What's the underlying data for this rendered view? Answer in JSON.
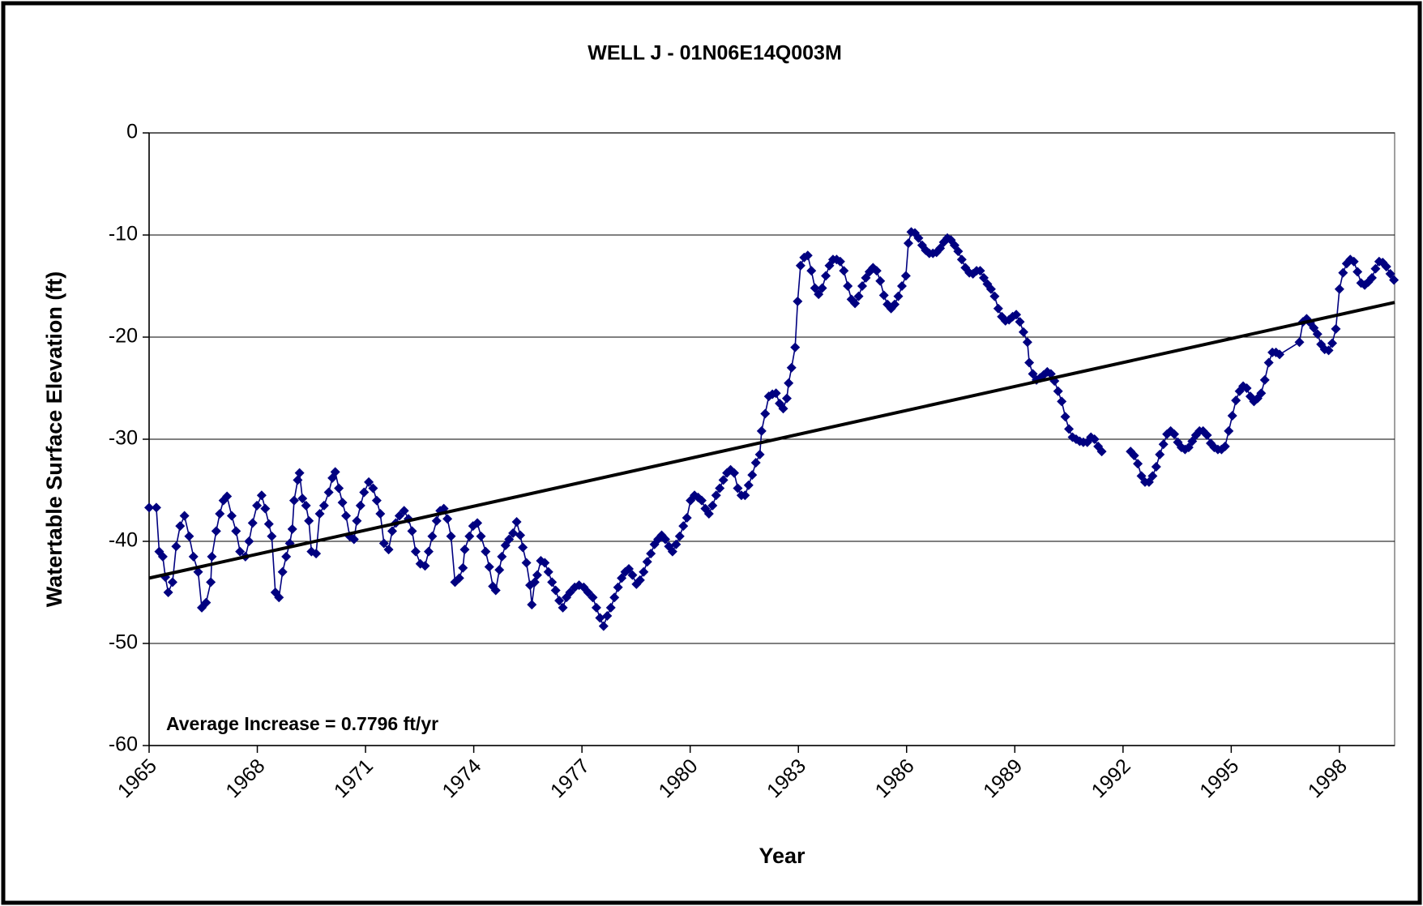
{
  "chart_data": {
    "type": "line",
    "title": "WELL J - 01N06E14Q003M",
    "x_label": "Year",
    "y_label": "Watertable Surface Elevation (ft)",
    "annotation": "Average Increase = 0.7796 ft/yr",
    "xlim": [
      1965,
      1999.53
    ],
    "xticks": [
      1965,
      1968,
      1971,
      1974,
      1977,
      1980,
      1983,
      1986,
      1989,
      1992,
      1995,
      1998
    ],
    "ylim": [
      -60,
      0
    ],
    "yticks": [
      -60,
      -50,
      -40,
      -30,
      -20,
      -10,
      0
    ],
    "grid": true,
    "x": [
      1965.0,
      1965.2,
      1965.28,
      1965.38,
      1965.45,
      1965.53,
      1965.65,
      1965.75,
      1965.86,
      1965.98,
      1966.11,
      1966.23,
      1966.36,
      1966.46,
      1966.58,
      1966.71,
      1966.74,
      1966.86,
      1966.96,
      1967.06,
      1967.16,
      1967.29,
      1967.41,
      1967.52,
      1967.67,
      1967.77,
      1967.87,
      1967.99,
      1968.12,
      1968.22,
      1968.32,
      1968.4,
      1968.5,
      1968.6,
      1968.7,
      1968.8,
      1968.9,
      1968.97,
      1969.02,
      1969.12,
      1969.17,
      1969.25,
      1969.35,
      1969.43,
      1969.5,
      1969.63,
      1969.73,
      1969.85,
      1969.98,
      1970.08,
      1970.16,
      1970.26,
      1970.36,
      1970.46,
      1970.56,
      1970.68,
      1970.76,
      1970.86,
      1970.96,
      1971.09,
      1971.21,
      1971.31,
      1971.41,
      1971.51,
      1971.64,
      1971.74,
      1971.84,
      1971.94,
      1972.07,
      1972.19,
      1972.29,
      1972.39,
      1972.52,
      1972.65,
      1972.75,
      1972.85,
      1972.97,
      1973.07,
      1973.17,
      1973.27,
      1973.37,
      1973.48,
      1973.6,
      1973.7,
      1973.75,
      1973.88,
      1973.98,
      1974.1,
      1974.2,
      1974.33,
      1974.43,
      1974.53,
      1974.61,
      1974.71,
      1974.78,
      1974.88,
      1974.98,
      1975.09,
      1975.19,
      1975.29,
      1975.36,
      1975.46,
      1975.56,
      1975.61,
      1975.69,
      1975.76,
      1975.86,
      1975.97,
      1976.07,
      1976.17,
      1976.27,
      1976.37,
      1976.47,
      1976.57,
      1976.67,
      1976.8,
      1976.92,
      1977.05,
      1977.17,
      1977.3,
      1977.4,
      1977.5,
      1977.6,
      1977.7,
      1977.8,
      1977.9,
      1978.0,
      1978.1,
      1978.2,
      1978.3,
      1978.4,
      1978.51,
      1978.61,
      1978.71,
      1978.81,
      1978.91,
      1979.01,
      1979.11,
      1979.21,
      1979.31,
      1979.41,
      1979.51,
      1979.61,
      1979.71,
      1979.81,
      1979.91,
      1980.01,
      1980.12,
      1980.22,
      1980.32,
      1980.42,
      1980.52,
      1980.62,
      1980.72,
      1980.82,
      1980.92,
      1981.02,
      1981.12,
      1981.22,
      1981.32,
      1981.42,
      1981.52,
      1981.62,
      1981.72,
      1981.82,
      1981.93,
      1981.98,
      1982.08,
      1982.18,
      1982.28,
      1982.38,
      1982.48,
      1982.58,
      1982.68,
      1982.73,
      1982.81,
      1982.91,
      1982.98,
      1983.06,
      1983.16,
      1983.26,
      1983.36,
      1983.46,
      1983.56,
      1983.66,
      1983.76,
      1983.86,
      1983.96,
      1984.06,
      1984.16,
      1984.26,
      1984.37,
      1984.47,
      1984.57,
      1984.67,
      1984.77,
      1984.87,
      1984.97,
      1985.07,
      1985.17,
      1985.27,
      1985.37,
      1985.47,
      1985.57,
      1985.67,
      1985.77,
      1985.87,
      1985.98,
      1986.05,
      1986.13,
      1986.23,
      1986.33,
      1986.43,
      1986.53,
      1986.63,
      1986.73,
      1986.83,
      1986.93,
      1987.03,
      1987.13,
      1987.23,
      1987.33,
      1987.43,
      1987.53,
      1987.63,
      1987.74,
      1987.84,
      1987.94,
      1988.04,
      1988.14,
      1988.24,
      1988.34,
      1988.44,
      1988.54,
      1988.64,
      1988.74,
      1988.84,
      1988.94,
      1989.04,
      1989.14,
      1989.24,
      1989.35,
      1989.4,
      1989.5,
      1989.6,
      1989.7,
      1989.8,
      1989.9,
      1990.0,
      1990.1,
      1990.2,
      1990.3,
      1990.4,
      1990.5,
      1990.6,
      1990.7,
      1990.8,
      1990.9,
      1991.01,
      1991.11,
      1991.21,
      1991.31,
      1991.41,
      1991.8,
      1992.21,
      1992.31,
      1992.41,
      1992.51,
      1992.61,
      1992.72,
      1992.82,
      1992.92,
      1993.02,
      1993.12,
      1993.22,
      1993.32,
      1993.42,
      1993.52,
      1993.62,
      1993.72,
      1993.82,
      1993.92,
      1994.02,
      1994.12,
      1994.22,
      1994.33,
      1994.43,
      1994.53,
      1994.63,
      1994.73,
      1994.83,
      1994.93,
      1995.03,
      1995.13,
      1995.23,
      1995.33,
      1995.43,
      1995.53,
      1995.63,
      1995.73,
      1995.83,
      1995.93,
      1996.04,
      1996.14,
      1996.24,
      1996.34,
      1996.89,
      1996.99,
      1997.09,
      1997.19,
      1997.29,
      1997.39,
      1997.49,
      1997.59,
      1997.7,
      1997.8,
      1997.9,
      1998.0,
      1998.1,
      1998.2,
      1998.3,
      1998.4,
      1998.5,
      1998.6,
      1998.7,
      1998.8,
      1998.9,
      1999.0,
      1999.1,
      1999.2,
      1999.3,
      1999.41,
      1999.51
    ],
    "series": [
      {
        "color": "#000080",
        "values": [
          -36.7,
          -36.7,
          -41,
          -41.5,
          -43.5,
          -45,
          -44,
          -40.5,
          -38.5,
          -37.5,
          -39.5,
          -41.5,
          -43,
          -46.5,
          -46,
          -44,
          -41.5,
          -39,
          -37.3,
          -36,
          -35.6,
          -37.5,
          -39,
          -41,
          -41.5,
          -40,
          -38.2,
          -36.5,
          -35.5,
          -36.8,
          -38.3,
          -39.5,
          -45,
          -45.5,
          -43,
          -41.5,
          -40.2,
          -38.8,
          -36,
          -34,
          -33.3,
          -35.8,
          -36.5,
          -38,
          -41,
          -41.2,
          -37.3,
          -36.5,
          -35.2,
          -33.8,
          -33.2,
          -34.8,
          -36.2,
          -37.5,
          -39.5,
          -39.8,
          -38,
          -36.5,
          -35.2,
          -34.2,
          -34.8,
          -36,
          -37.3,
          -40.2,
          -40.8,
          -39,
          -38.2,
          -37.5,
          -37,
          -37.8,
          -39,
          -41,
          -42.2,
          -42.4,
          -41,
          -39.5,
          -38,
          -37,
          -36.8,
          -37.8,
          -39.5,
          -44,
          -43.6,
          -42.6,
          -40.8,
          -39.5,
          -38.5,
          -38.2,
          -39.5,
          -41,
          -42.5,
          -44.4,
          -44.8,
          -42.8,
          -41.5,
          -40.4,
          -39.8,
          -39.2,
          -38.1,
          -39.4,
          -40.6,
          -42.1,
          -44.3,
          -46.2,
          -44,
          -43.3,
          -41.9,
          -42.1,
          -43,
          -44,
          -44.8,
          -45.8,
          -46.5,
          -45.5,
          -45,
          -44.5,
          -44.3,
          -44.5,
          -45,
          -45.5,
          -46.5,
          -47.5,
          -48.3,
          -47.3,
          -46.5,
          -45.5,
          -44.5,
          -43.6,
          -43,
          -42.7,
          -43.3,
          -44.2,
          -43.8,
          -43,
          -42,
          -41.2,
          -40.3,
          -39.8,
          -39.4,
          -39.8,
          -40.5,
          -41,
          -40.3,
          -39.5,
          -38.5,
          -37.7,
          -36,
          -35.5,
          -35.7,
          -36,
          -36.8,
          -37.3,
          -36.5,
          -35.5,
          -34.8,
          -34,
          -33.3,
          -33,
          -33.3,
          -34.8,
          -35.5,
          -35.5,
          -34.5,
          -33.5,
          -32.3,
          -31.5,
          -29.2,
          -27.5,
          -25.8,
          -25.6,
          -25.5,
          -26.5,
          -27,
          -26,
          -24.5,
          -23,
          -21,
          -16.5,
          -13,
          -12.2,
          -12,
          -13.5,
          -15.2,
          -15.8,
          -15.2,
          -14,
          -13,
          -12.4,
          -12.4,
          -12.6,
          -13.5,
          -15,
          -16.3,
          -16.7,
          -16,
          -15,
          -14.2,
          -13.6,
          -13.2,
          -13.5,
          -14.5,
          -15.9,
          -16.8,
          -17.2,
          -16.8,
          -16,
          -15,
          -14,
          -10.8,
          -9.7,
          -9.8,
          -10.3,
          -11,
          -11.5,
          -11.8,
          -11.8,
          -11.7,
          -11.3,
          -10.7,
          -10.3,
          -10.5,
          -11,
          -11.6,
          -12.4,
          -13.2,
          -13.7,
          -13.8,
          -13.5,
          -13.5,
          -14.2,
          -14.8,
          -15.3,
          -16,
          -17.2,
          -18,
          -18.4,
          -18.3,
          -18,
          -17.8,
          -18.5,
          -19.5,
          -20.5,
          -22.5,
          -23.6,
          -24.2,
          -24,
          -23.7,
          -23.4,
          -23.6,
          -24.3,
          -25.3,
          -26.3,
          -27.8,
          -29,
          -29.8,
          -30,
          -30.2,
          -30.3,
          -30.3,
          -29.8,
          -30,
          -30.7,
          -31.2,
          null,
          -31.2,
          -31.6,
          -32.4,
          -33.6,
          -34.2,
          -34.2,
          -33.6,
          -32.7,
          -31.5,
          -30.5,
          -29.5,
          -29.2,
          -29.5,
          -30.3,
          -30.8,
          -31,
          -30.8,
          -30.2,
          -29.6,
          -29.2,
          -29.2,
          -29.6,
          -30.4,
          -30.8,
          -31,
          -31,
          -30.7,
          -29.2,
          -27.7,
          -26.2,
          -25.3,
          -24.8,
          -25,
          -25.8,
          -26.3,
          -26,
          -25.5,
          -24.2,
          -22.5,
          -21.5,
          -21.5,
          -21.7,
          -20.5,
          -18.5,
          -18.2,
          -18.6,
          -19.1,
          -19.7,
          -20.7,
          -21.2,
          -21.3,
          -20.6,
          -19.2,
          -15.3,
          -13.7,
          -12.8,
          -12.4,
          -12.6,
          -13.6,
          -14.7,
          -14.9,
          -14.6,
          -14.2,
          -13.3,
          -12.6,
          -12.7,
          -13.1,
          -13.8,
          -14.4
        ]
      }
    ],
    "trend_line": {
      "color": "#000000",
      "x": [
        1965,
        1999.53
      ],
      "values": [
        -43.6,
        -16.6
      ]
    }
  }
}
